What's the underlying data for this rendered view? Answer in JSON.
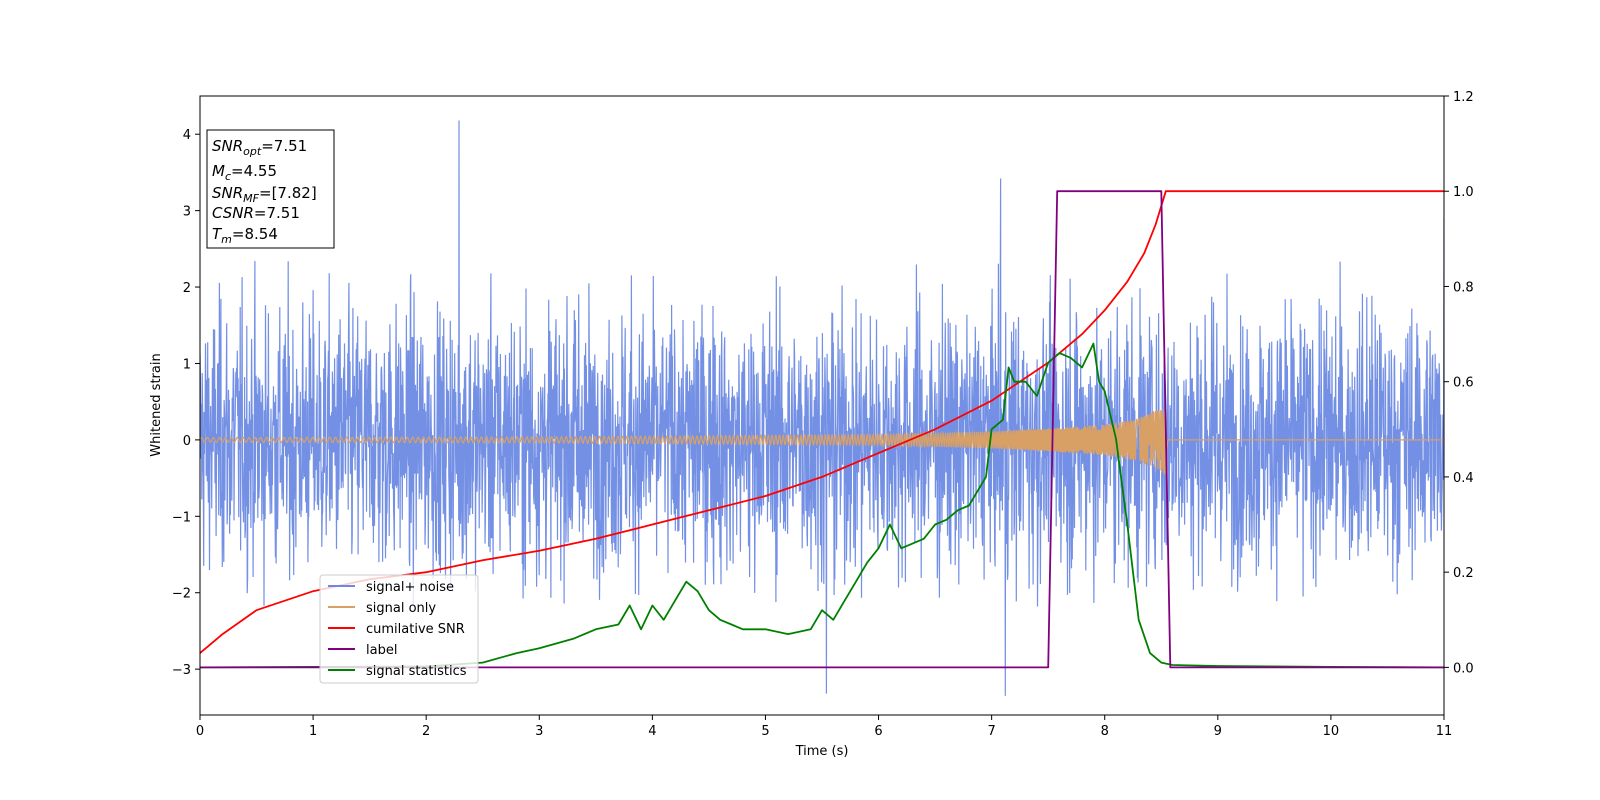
{
  "chart_data": {
    "type": "line",
    "xlabel": "Time (s)",
    "ylabel": "Whitened strain",
    "xlim": [
      0,
      11
    ],
    "ylim_left": [
      -3.6,
      4.5
    ],
    "ylim_right": [
      -0.1,
      1.2
    ],
    "grid": false,
    "legend_position": "lower-left",
    "x_ticks": [
      "0",
      "1",
      "2",
      "3",
      "4",
      "5",
      "6",
      "7",
      "8",
      "9",
      "10",
      "11"
    ],
    "y_ticks_left": [
      "4",
      "3",
      "2",
      "1",
      "0",
      "−1",
      "−2",
      "−3"
    ],
    "y_ticks_right": [
      "1.2",
      "1.0",
      "0.8",
      "0.6",
      "0.4",
      "0.2",
      "0.0"
    ],
    "annotation": [
      {
        "base": "SNR",
        "sub": "opt",
        "rest": "=7.51"
      },
      {
        "base": "M",
        "sub": "c",
        "rest": "=4.55"
      },
      {
        "base": "SNR",
        "sub": "MF",
        "rest": "=[7.82]"
      },
      {
        "base": "CSNR",
        "sub": "",
        "rest": "=7.51"
      },
      {
        "base": "T",
        "sub": "m",
        "rest": "=8.54"
      }
    ],
    "series": [
      {
        "name": "signal+ noise",
        "color": "#6c8ae4",
        "axis": "left",
        "kind": "noise",
        "typical_range": [
          -2.2,
          2.6
        ],
        "extremes": [
          [
            2.29,
            4.18
          ],
          [
            7.08,
            3.42
          ],
          [
            5.54,
            -3.32
          ],
          [
            7.12,
            -3.35
          ],
          [
            11.0,
            2.9
          ]
        ]
      },
      {
        "name": "signal only",
        "color": "#d9a066",
        "axis": "left",
        "kind": "chirp",
        "t_merge": 8.54,
        "envelope": [
          [
            0.0,
            0.03
          ],
          [
            3.0,
            0.04
          ],
          [
            5.0,
            0.06
          ],
          [
            6.0,
            0.07
          ],
          [
            7.0,
            0.11
          ],
          [
            7.5,
            0.15
          ],
          [
            8.0,
            0.2
          ],
          [
            8.3,
            0.28
          ],
          [
            8.45,
            0.38
          ],
          [
            8.54,
            0.46
          ]
        ]
      },
      {
        "name": "cumilative SNR",
        "color": "#ff0000",
        "axis": "right",
        "x": [
          0.0,
          0.2,
          0.5,
          1.0,
          1.5,
          2.0,
          2.5,
          3.0,
          3.5,
          4.0,
          4.5,
          5.0,
          5.5,
          6.0,
          6.5,
          7.0,
          7.5,
          7.8,
          8.0,
          8.2,
          8.35,
          8.45,
          8.54,
          8.6,
          11.0
        ],
        "y": [
          0.03,
          0.07,
          0.12,
          0.16,
          0.185,
          0.2,
          0.225,
          0.245,
          0.27,
          0.3,
          0.33,
          0.36,
          0.4,
          0.45,
          0.5,
          0.56,
          0.64,
          0.7,
          0.75,
          0.81,
          0.87,
          0.93,
          1.0,
          1.0,
          1.0
        ]
      },
      {
        "name": "label",
        "color": "#800080",
        "axis": "right",
        "x": [
          0.0,
          7.5,
          7.58,
          8.5,
          8.58,
          11.0
        ],
        "y": [
          0.0,
          0.0,
          1.0,
          1.0,
          0.0,
          0.0
        ]
      },
      {
        "name": "signal statistics",
        "color": "#008000",
        "axis": "right",
        "x": [
          0.0,
          1.0,
          2.0,
          2.5,
          2.8,
          3.0,
          3.3,
          3.5,
          3.7,
          3.8,
          3.9,
          4.0,
          4.1,
          4.2,
          4.3,
          4.4,
          4.5,
          4.6,
          4.7,
          4.8,
          5.0,
          5.2,
          5.4,
          5.5,
          5.6,
          5.7,
          5.8,
          5.9,
          6.0,
          6.1,
          6.2,
          6.3,
          6.4,
          6.5,
          6.6,
          6.7,
          6.8,
          6.9,
          6.95,
          7.0,
          7.1,
          7.15,
          7.2,
          7.3,
          7.4,
          7.5,
          7.6,
          7.7,
          7.8,
          7.9,
          7.95,
          8.0,
          8.1,
          8.2,
          8.3,
          8.4,
          8.5,
          8.6,
          9.0,
          10.0,
          11.0
        ],
        "y": [
          0.0,
          0.001,
          0.002,
          0.01,
          0.03,
          0.04,
          0.06,
          0.08,
          0.09,
          0.13,
          0.08,
          0.13,
          0.1,
          0.14,
          0.18,
          0.16,
          0.12,
          0.1,
          0.09,
          0.08,
          0.08,
          0.07,
          0.08,
          0.12,
          0.1,
          0.14,
          0.18,
          0.22,
          0.25,
          0.3,
          0.25,
          0.26,
          0.27,
          0.3,
          0.31,
          0.33,
          0.34,
          0.38,
          0.4,
          0.5,
          0.52,
          0.63,
          0.6,
          0.6,
          0.57,
          0.64,
          0.66,
          0.65,
          0.63,
          0.68,
          0.6,
          0.58,
          0.48,
          0.3,
          0.1,
          0.03,
          0.01,
          0.005,
          0.003,
          0.001,
          0.0
        ]
      }
    ]
  }
}
